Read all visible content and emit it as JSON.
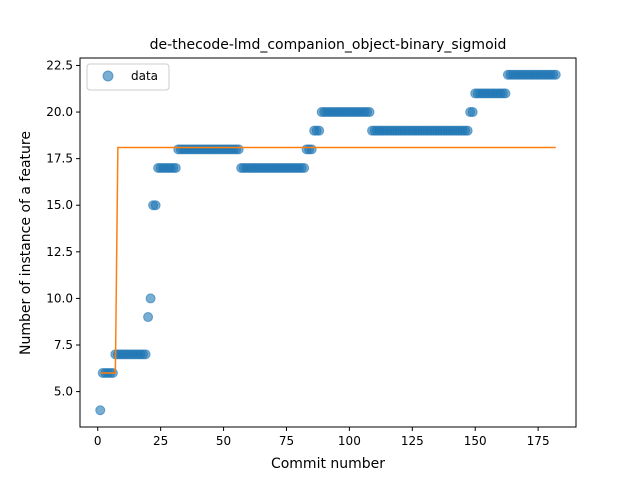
{
  "chart_data": {
    "type": "scatter",
    "title": "de-thecode-lmd_companion_object-binary_sigmoid",
    "xlabel": "Commit number",
    "ylabel": "Number of instance of a feature",
    "xlim": [
      -7.05,
      190.05
    ],
    "ylim": [
      3.1,
      22.9
    ],
    "x_ticks": [
      0,
      25,
      50,
      75,
      100,
      125,
      150,
      175
    ],
    "x_tick_labels": [
      "0",
      "25",
      "50",
      "75",
      "100",
      "125",
      "150",
      "175"
    ],
    "y_ticks": [
      5.0,
      7.5,
      10.0,
      12.5,
      15.0,
      17.5,
      20.0,
      22.5
    ],
    "y_tick_labels": [
      "5.0",
      "7.5",
      "10.0",
      "12.5",
      "15.0",
      "17.5",
      "20.0",
      "22.5"
    ],
    "legend": {
      "position": "upper-left",
      "entries": [
        "data"
      ]
    },
    "colors": {
      "data": "#1f77b4",
      "fit": "#ff7f0e"
    },
    "series": [
      {
        "name": "data",
        "kind": "scatter",
        "segments": [
          {
            "x_from": 1,
            "x_to": 1,
            "y": 4
          },
          {
            "x_from": 2,
            "x_to": 6,
            "y": 6
          },
          {
            "x_from": 7,
            "x_to": 19,
            "y": 7
          },
          {
            "x_from": 20,
            "x_to": 20,
            "y": 9
          },
          {
            "x_from": 21,
            "x_to": 21,
            "y": 10
          },
          {
            "x_from": 22,
            "x_to": 23,
            "y": 15
          },
          {
            "x_from": 24,
            "x_to": 31,
            "y": 17
          },
          {
            "x_from": 32,
            "x_to": 56,
            "y": 18
          },
          {
            "x_from": 57,
            "x_to": 82,
            "y": 17
          },
          {
            "x_from": 83,
            "x_to": 85,
            "y": 18
          },
          {
            "x_from": 86,
            "x_to": 88,
            "y": 19
          },
          {
            "x_from": 89,
            "x_to": 108,
            "y": 20
          },
          {
            "x_from": 109,
            "x_to": 147,
            "y": 19
          },
          {
            "x_from": 148,
            "x_to": 149,
            "y": 20
          },
          {
            "x_from": 150,
            "x_to": 162,
            "y": 21
          },
          {
            "x_from": 163,
            "x_to": 182,
            "y": 22
          }
        ]
      },
      {
        "name": "",
        "kind": "line",
        "x": [
          1,
          7,
          8,
          182
        ],
        "y": [
          6.0,
          6.0,
          18.1,
          18.1
        ]
      }
    ]
  }
}
